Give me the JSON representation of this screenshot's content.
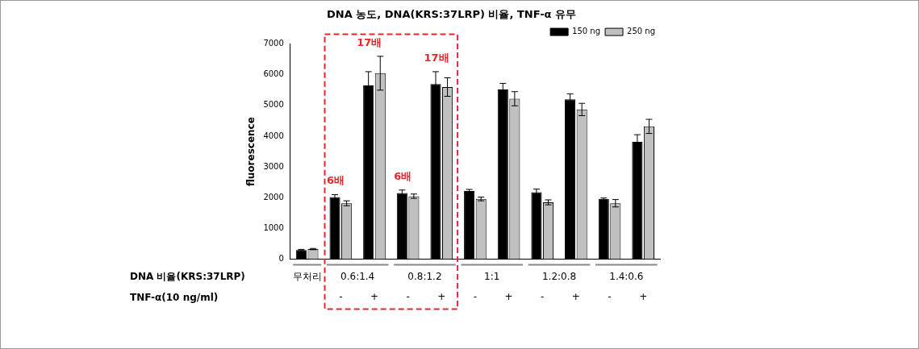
{
  "chart_data": {
    "type": "bar",
    "title": "DNA 농도, DNA(KRS:37LRP) 비율, TNF-α 유무",
    "y_label": "fluorescence",
    "categories": [
      null,
      "-",
      "+",
      "-",
      "+",
      "-",
      "+",
      "-",
      "+",
      "-",
      "+"
    ],
    "category_groups": [
      "무처리",
      "0.6:1.4",
      "0.6:1.4",
      "0.8:1.2",
      "0.8:1.2",
      "1:1",
      "1:1",
      "1.2:0.8",
      "1.2:0.8",
      "1.4:0.6",
      "1.4:0.6"
    ],
    "row_labels": [
      "DNA 비율(KRS:37LRP)",
      "TNF-α(10 ng/ml)"
    ],
    "series": [
      {
        "name": "150 ng",
        "color": "#000000",
        "values": [
          300,
          2020,
          5650,
          2150,
          5700,
          2220,
          5520,
          2180,
          5200,
          1960,
          3820
        ],
        "errors": [
          20,
          80,
          450,
          100,
          400,
          50,
          200,
          100,
          180,
          30,
          230
        ]
      },
      {
        "name": "250 ng",
        "color": "#c0c0c0",
        "values": [
          330,
          1820,
          6050,
          2050,
          5600,
          1960,
          5220,
          1850,
          4870,
          1820,
          4320
        ],
        "errors": [
          20,
          80,
          550,
          70,
          300,
          60,
          230,
          80,
          200,
          120,
          230
        ]
      }
    ],
    "ylim": [
      0,
      7000
    ],
    "yticks": [
      0,
      1000,
      2000,
      3000,
      4000,
      5000,
      6000,
      7000
    ],
    "grid": false,
    "legend": "upper right",
    "annotations": [
      {
        "text": "6배",
        "index": 1,
        "color": "#e8262a"
      },
      {
        "text": "17배",
        "index": 2,
        "color": "#e8262a"
      },
      {
        "text": "6배",
        "index": 3,
        "color": "#e8262a"
      },
      {
        "text": "17배",
        "index": 4,
        "color": "#e8262a"
      }
    ],
    "highlight": {
      "groups": [
        "0.6:1.4",
        "0.8:1.2"
      ],
      "color": "#e8262a",
      "line_style": "dashed"
    }
  }
}
